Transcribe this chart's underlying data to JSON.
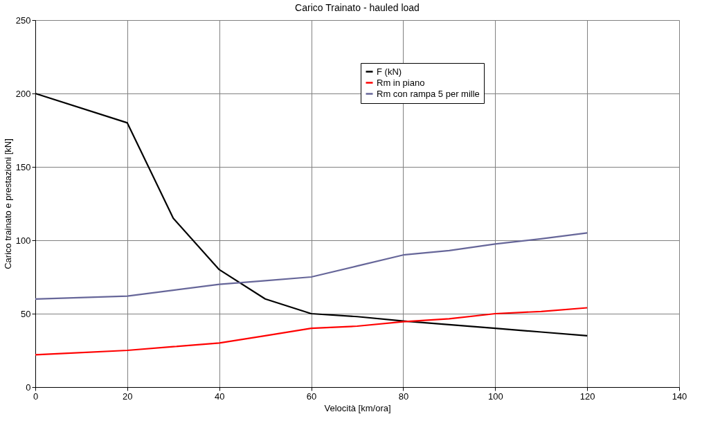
{
  "chart_data": {
    "type": "line",
    "title": "Carico Trainato - hauled load",
    "xlabel": "Velocità   [km/ora]",
    "ylabel": "Carico trainato e prestazioni  [kN]",
    "x": [
      0,
      20,
      30,
      40,
      50,
      60,
      70,
      80,
      90,
      100,
      110,
      120
    ],
    "xlim": [
      0,
      140
    ],
    "xticks": [
      0,
      20,
      40,
      60,
      80,
      100,
      120,
      140
    ],
    "ylim": [
      0,
      250
    ],
    "yticks": [
      0,
      50,
      100,
      150,
      200,
      250
    ],
    "grid": true,
    "legend": "top right",
    "marker": "none",
    "line_style": "solid",
    "series": [
      {
        "name": "F (kN)",
        "color": "#000000",
        "values": [
          200,
          180,
          115,
          80,
          60,
          50,
          48,
          45,
          42.5,
          40,
          37.5,
          35
        ]
      },
      {
        "name": "Rm in piano",
        "color": "#ff0000",
        "values": [
          22,
          25,
          27.5,
          30,
          35,
          40,
          41.5,
          44.5,
          46.5,
          50,
          51.5,
          54
        ]
      },
      {
        "name": "Rm con rampa 5 per mille",
        "color": "#666699",
        "values": [
          60,
          62,
          66,
          70,
          72.5,
          75,
          82.5,
          90,
          93,
          97.5,
          101,
          105
        ]
      }
    ]
  }
}
